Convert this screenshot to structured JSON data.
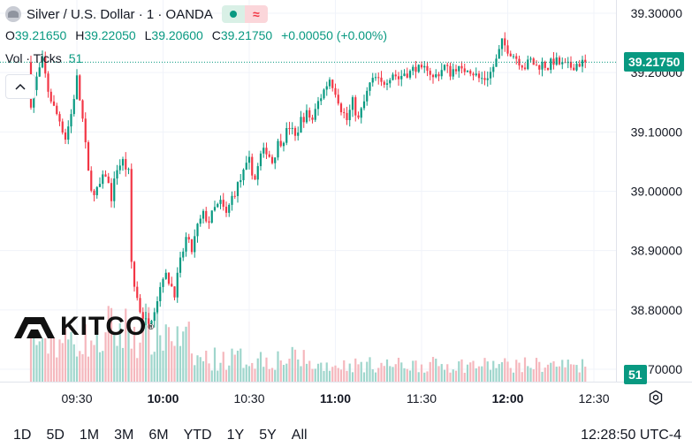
{
  "header": {
    "symbol": "Silver / U.S. Dollar · 1 · OANDA",
    "ohlc": [
      {
        "key": "O",
        "value": "39.21650"
      },
      {
        "key": "H",
        "value": "39.22050"
      },
      {
        "key": "L",
        "value": "39.20600"
      },
      {
        "key": "C",
        "value": "39.21750"
      }
    ],
    "change": "+0.00050 (+0.00%)",
    "volume_label": "Vol · Ticks",
    "volume_value": "51"
  },
  "logo": {
    "text": "KITCO",
    "mark": "®"
  },
  "price_tag": "39.21750",
  "volume_tag": "51",
  "colors": {
    "up": "#089981",
    "down": "#f23645",
    "up_vol": "#9fd6cc",
    "down_vol": "#f5b7bd",
    "grid": "#f0f3fa",
    "last_line": "#089981"
  },
  "icons": [
    "silver-symbol-icon",
    "market-open-dot-icon",
    "wave-icon",
    "collapse-chevron-icon",
    "gear-icon"
  ],
  "timeframes": [
    "1D",
    "5D",
    "1M",
    "3M",
    "6M",
    "YTD",
    "1Y",
    "5Y",
    "All"
  ],
  "clock": "12:28:50 UTC-4",
  "chart_data": {
    "type": "candlestick",
    "x_ticks": [
      {
        "label": "09:30",
        "minute": 0,
        "bold": false
      },
      {
        "label": "10:00",
        "minute": 30,
        "bold": true
      },
      {
        "label": "10:30",
        "minute": 60,
        "bold": false
      },
      {
        "label": "11:00",
        "minute": 90,
        "bold": true
      },
      {
        "label": "11:30",
        "minute": 120,
        "bold": false
      },
      {
        "label": "12:00",
        "minute": 150,
        "bold": true
      },
      {
        "label": "12:30",
        "minute": 180,
        "bold": false
      }
    ],
    "y_ticks": [
      "39.30000",
      "39.20000",
      "39.10000",
      "39.00000",
      "38.90000",
      "38.80000",
      "38.70000"
    ],
    "y_tick_values": [
      39.3,
      39.2,
      39.1,
      39.0,
      38.9,
      38.8,
      38.7
    ],
    "ylim": [
      38.68,
      39.33
    ],
    "last_price": 39.2175,
    "candle_minutes": [
      -16,
      177
    ],
    "close_path": [
      [
        -16,
        39.15
      ],
      [
        -14,
        39.19
      ],
      [
        -12,
        39.22
      ],
      [
        -10,
        39.17
      ],
      [
        -8,
        39.14
      ],
      [
        -6,
        39.12
      ],
      [
        -4,
        39.09
      ],
      [
        -2,
        39.13
      ],
      [
        0,
        39.19
      ],
      [
        2,
        39.12
      ],
      [
        4,
        39.03
      ],
      [
        6,
        38.99
      ],
      [
        8,
        39.01
      ],
      [
        10,
        39.03
      ],
      [
        12,
        38.99
      ],
      [
        14,
        39.04
      ],
      [
        16,
        39.05
      ],
      [
        18,
        39.03
      ],
      [
        19,
        38.88
      ],
      [
        20,
        38.84
      ],
      [
        22,
        38.8
      ],
      [
        24,
        38.78
      ],
      [
        26,
        38.79
      ],
      [
        28,
        38.82
      ],
      [
        30,
        38.86
      ],
      [
        32,
        38.85
      ],
      [
        34,
        38.83
      ],
      [
        36,
        38.88
      ],
      [
        38,
        38.92
      ],
      [
        40,
        38.9
      ],
      [
        42,
        38.94
      ],
      [
        44,
        38.96
      ],
      [
        46,
        38.95
      ],
      [
        48,
        38.97
      ],
      [
        50,
        38.98
      ],
      [
        52,
        38.96
      ],
      [
        54,
        38.99
      ],
      [
        56,
        39.01
      ],
      [
        58,
        39.03
      ],
      [
        60,
        39.05
      ],
      [
        62,
        39.02
      ],
      [
        64,
        39.06
      ],
      [
        66,
        39.07
      ],
      [
        68,
        39.05
      ],
      [
        70,
        39.08
      ],
      [
        72,
        39.09
      ],
      [
        74,
        39.11
      ],
      [
        76,
        39.09
      ],
      [
        78,
        39.12
      ],
      [
        80,
        39.13
      ],
      [
        82,
        39.12
      ],
      [
        84,
        39.15
      ],
      [
        86,
        39.17
      ],
      [
        88,
        39.19
      ],
      [
        90,
        39.17
      ],
      [
        92,
        39.14
      ],
      [
        94,
        39.12
      ],
      [
        96,
        39.15
      ],
      [
        98,
        39.12
      ],
      [
        100,
        39.15
      ],
      [
        102,
        39.18
      ],
      [
        104,
        39.19
      ],
      [
        106,
        39.18
      ],
      [
        108,
        39.19
      ],
      [
        110,
        39.2
      ],
      [
        112,
        39.19
      ],
      [
        114,
        39.2
      ],
      [
        116,
        39.2
      ],
      [
        118,
        39.21
      ],
      [
        120,
        39.2
      ],
      [
        122,
        39.21
      ],
      [
        124,
        39.19
      ],
      [
        126,
        39.2
      ],
      [
        128,
        39.21
      ],
      [
        130,
        39.2
      ],
      [
        132,
        39.21
      ],
      [
        134,
        39.2
      ],
      [
        136,
        39.21
      ],
      [
        138,
        39.2
      ],
      [
        140,
        39.19
      ],
      [
        142,
        39.19
      ],
      [
        144,
        39.2
      ],
      [
        146,
        39.22
      ],
      [
        148,
        39.25
      ],
      [
        150,
        39.24
      ],
      [
        152,
        39.23
      ],
      [
        154,
        39.22
      ],
      [
        156,
        39.21
      ],
      [
        158,
        39.22
      ],
      [
        160,
        39.21
      ],
      [
        162,
        39.215
      ],
      [
        164,
        39.21
      ],
      [
        166,
        39.22
      ],
      [
        168,
        39.215
      ],
      [
        170,
        39.21
      ],
      [
        172,
        39.21
      ],
      [
        174,
        39.215
      ],
      [
        177,
        39.2175
      ]
    ]
  }
}
